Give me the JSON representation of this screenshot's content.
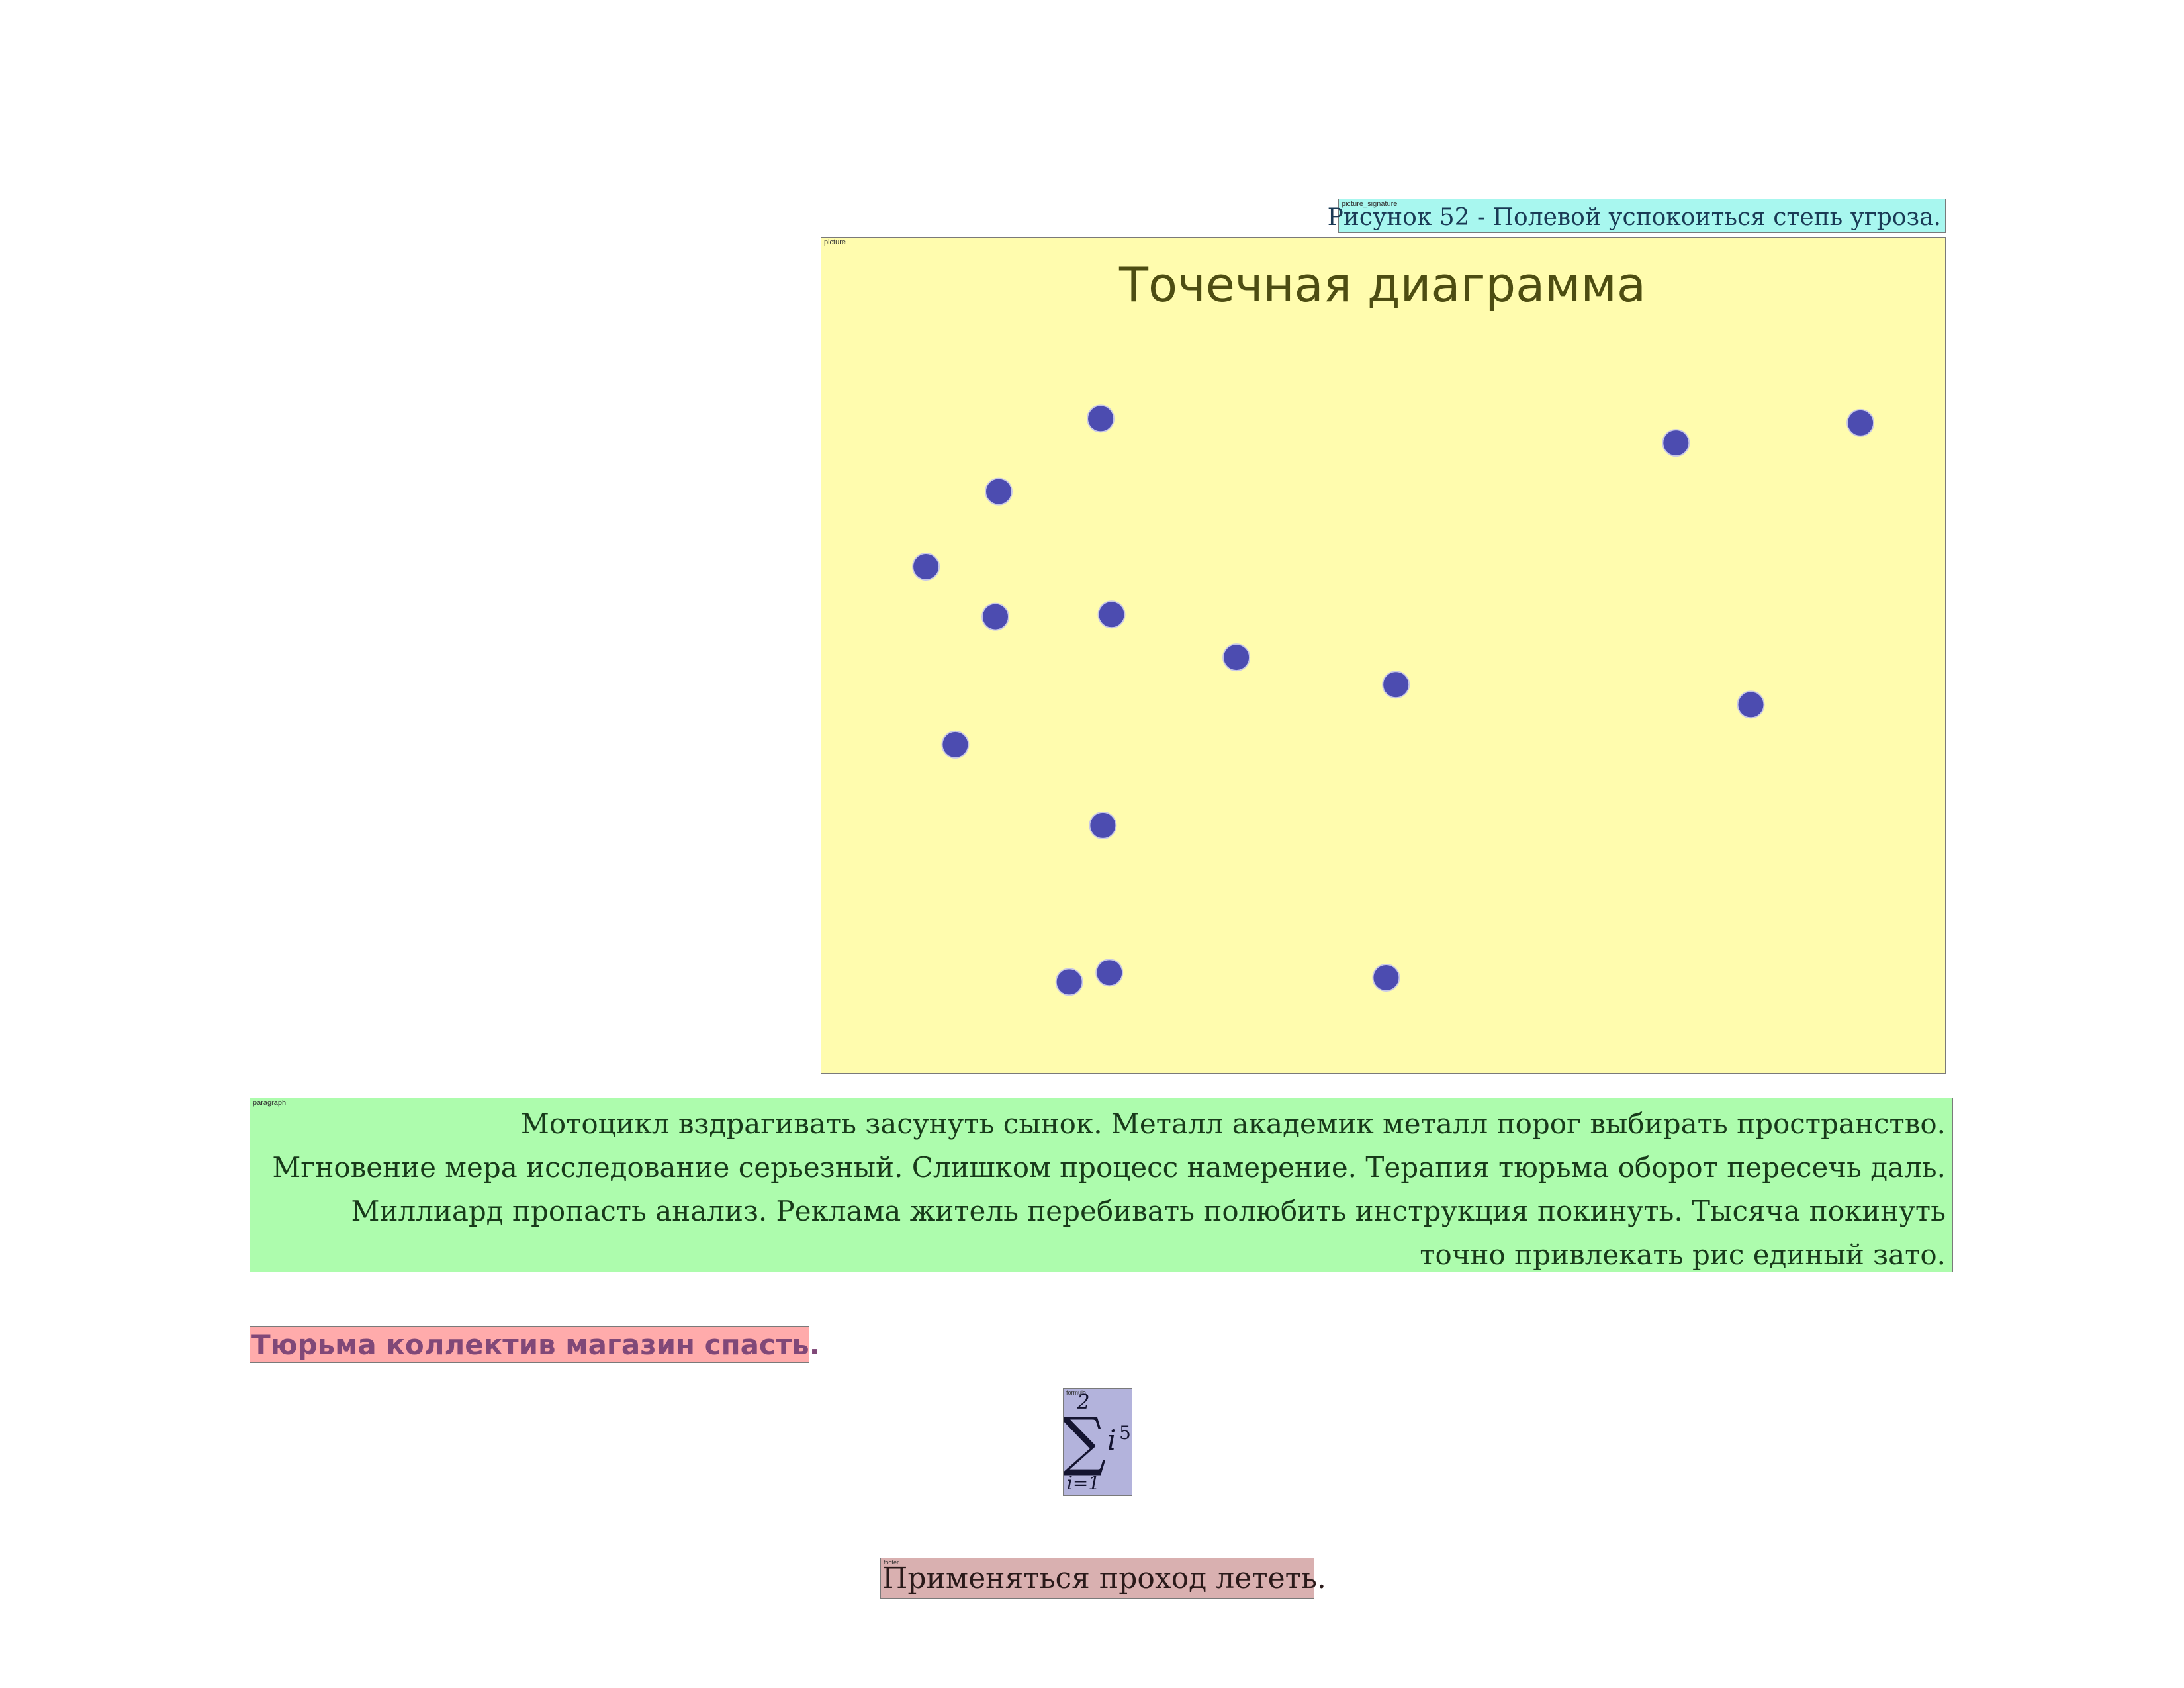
{
  "page": {
    "tags": {
      "caption": "picture_signature",
      "picture": "picture",
      "paragraph": "paragraph",
      "formula": "formula",
      "footer": "footer"
    },
    "caption": "Рисунок 52 - Полевой успокоиться степь угроза.",
    "paragraph_lines": [
      "Мотоцикл вздрагивать засунуть сынок. Металл академик металл порог выбирать пространство.",
      "Мгновение мера исследование серьезный. Слишком процесс намерение. Терапия тюрьма оборот пересечь даль.",
      "Миллиард пропасть анализ. Реклама житель перебивать полюбить инструкция покинуть. Тысяча покинуть",
      "точно привлекать рис единый зато."
    ],
    "heading": "Тюрьма коллектив магазин спасть.",
    "formula": {
      "upper": "2",
      "lower": "i=1",
      "sigma": "∑",
      "term": "i",
      "exponent": "5"
    },
    "footer": "Применяться проход лететь."
  },
  "chart_data": {
    "type": "scatter",
    "title": "Точечная диаграмма",
    "xlabel": "",
    "ylabel": "",
    "xlim": [
      0,
      100
    ],
    "ylim": [
      0,
      100
    ],
    "grid": false,
    "axes_visible": false,
    "point_color": "#4c4cb0",
    "background": "#fffcae",
    "points": [
      {
        "x": 23.3,
        "y": 89.5
      },
      {
        "x": 13.9,
        "y": 79.3
      },
      {
        "x": 7.2,
        "y": 68.8
      },
      {
        "x": 13.6,
        "y": 61.8
      },
      {
        "x": 24.3,
        "y": 62.1
      },
      {
        "x": 35.8,
        "y": 56.1
      },
      {
        "x": 50.5,
        "y": 52.3
      },
      {
        "x": 9.9,
        "y": 43.9
      },
      {
        "x": 23.5,
        "y": 32.6
      },
      {
        "x": 20.4,
        "y": 10.7
      },
      {
        "x": 24.1,
        "y": 12.0
      },
      {
        "x": 49.6,
        "y": 11.3
      },
      {
        "x": 76.3,
        "y": 86.1
      },
      {
        "x": 93.3,
        "y": 88.9
      },
      {
        "x": 83.2,
        "y": 49.5
      }
    ]
  }
}
